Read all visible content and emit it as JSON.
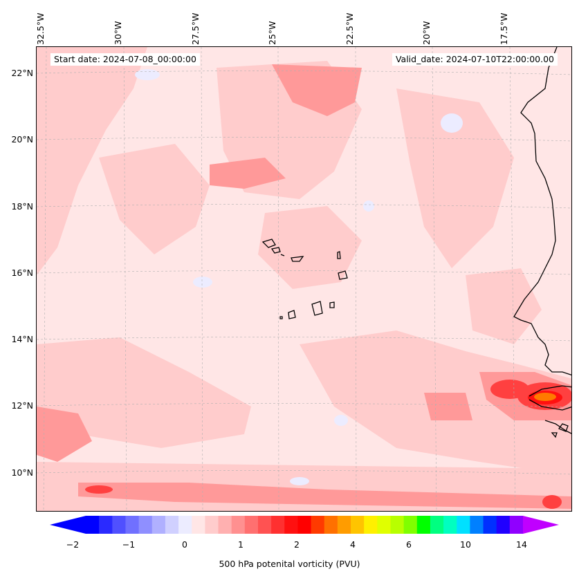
{
  "header": {
    "start_label": "Start date: 2024-07-08_00:00:00",
    "valid_label": "Valid_date: 2024-07-10T22:00:00.00"
  },
  "lon_labels": [
    "32.5°W",
    "30°W",
    "27.5°W",
    "25°W",
    "22.5°W",
    "20°W",
    "17.5°W"
  ],
  "lat_labels": [
    "22°N",
    "20°N",
    "18°N",
    "16°N",
    "14°N",
    "12°N",
    "10°N"
  ],
  "colorbar": {
    "label": "500 hPa potenital vorticity (PVU)",
    "ticks": [
      "−2",
      "−1",
      "0",
      "1",
      "2",
      "4",
      "6",
      "10",
      "14"
    ],
    "colors": [
      "#0000ff",
      "#2a2aff",
      "#5050ff",
      "#7070ff",
      "#8f8fff",
      "#b0b0ff",
      "#d0d0ff",
      "#ececff",
      "#ffe6e6",
      "#ffcccc",
      "#ffb0b0",
      "#ff9090",
      "#ff7070",
      "#ff5252",
      "#ff3030",
      "#ff1010",
      "#ff0000",
      "#ff3a00",
      "#ff7000",
      "#ff9c00",
      "#ffc400",
      "#fff000",
      "#e0ff00",
      "#b8ff00",
      "#80ff00",
      "#00ff00",
      "#00ff80",
      "#00ffc0",
      "#00e0ff",
      "#0080ff",
      "#0030ff",
      "#2000ff",
      "#9000ff"
    ],
    "extend_min_color": "#0000ff",
    "extend_max_color": "#c000ff"
  },
  "colors": {
    "background_pv": "#ffe6e6",
    "light_red": "#ffcccc",
    "mid_red": "#ff9999",
    "strong_red": "#ff3030",
    "coastline": "#000000"
  }
}
